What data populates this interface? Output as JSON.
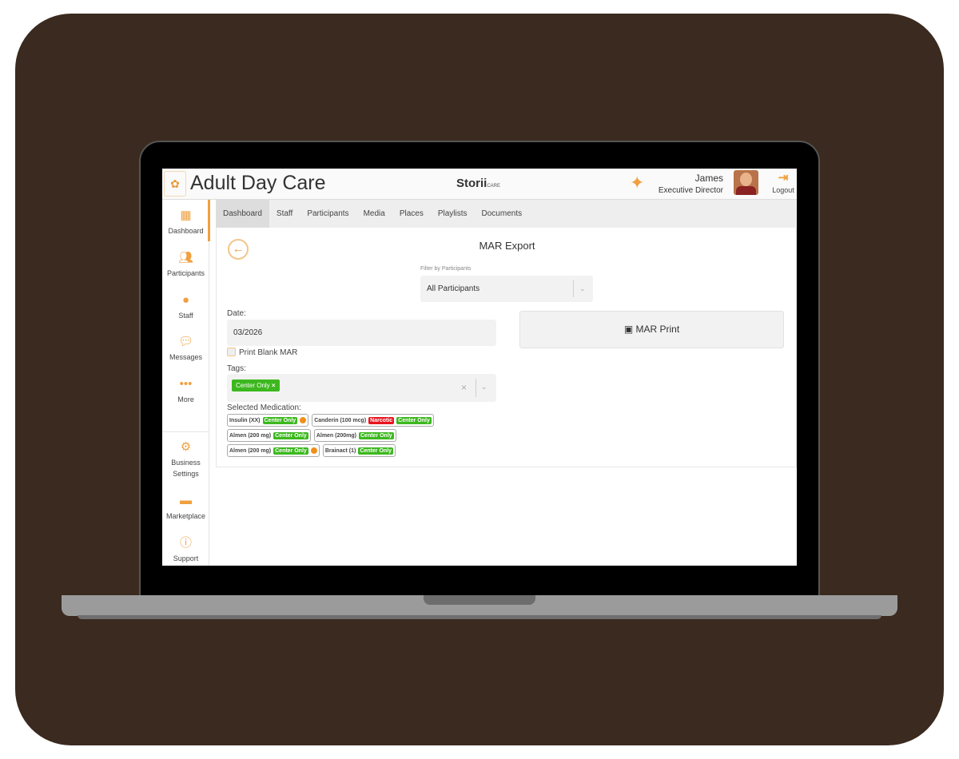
{
  "colors": {
    "accent": "#f0a040",
    "tag_green": "#3cb81e",
    "narcotic_red": "#e8141e",
    "frame": "#3a2a1f"
  },
  "header": {
    "title": "Adult Day Care",
    "brand": "Storii",
    "brand_sub": "CARE",
    "user_name": "James",
    "user_role": "Executive Director",
    "logout": "Logout"
  },
  "sidebar": {
    "items": [
      {
        "label": "Dashboard",
        "icon": "grid-icon"
      },
      {
        "label": "Participants",
        "icon": "users-icon"
      },
      {
        "label": "Staff",
        "icon": "doctor-icon"
      },
      {
        "label": "Messages",
        "icon": "chat-icon"
      },
      {
        "label": "More",
        "icon": "dots-icon"
      }
    ],
    "bottom": [
      {
        "label": "Business Settings",
        "icon": "gear-icon"
      },
      {
        "label": "Marketplace",
        "icon": "store-icon"
      },
      {
        "label": "Support",
        "icon": "help-icon"
      }
    ]
  },
  "tabs": [
    "Dashboard",
    "Staff",
    "Participants",
    "Media",
    "Places",
    "Playlists",
    "Documents"
  ],
  "main": {
    "title": "MAR Export",
    "filter_label": "Filter by Participants",
    "filter_value": "All Participants",
    "date_label": "Date:",
    "date_value": "03/2026",
    "blank_label": "Print Blank MAR",
    "print_label": "MAR Print",
    "tags_label": "Tags:",
    "tag": "Center Only",
    "selected_label": "Selected Medication:"
  },
  "medications": [
    [
      {
        "name": "Insulin (XX)",
        "badges": [
          "Center Only"
        ],
        "clock": true
      },
      {
        "name": "Canderin (100 mcg)",
        "badges": [
          "Narcotic",
          "Center Only"
        ],
        "clock": false
      }
    ],
    [
      {
        "name": "Almen (200 mg)",
        "badges": [
          "Center Only"
        ],
        "clock": false
      },
      {
        "name": "Almen (200mg)",
        "badges": [
          "Center Only"
        ],
        "clock": false
      }
    ],
    [
      {
        "name": "Almen (200 mg)",
        "badges": [
          "Center Only"
        ],
        "clock": true
      },
      {
        "name": "Brainact (1)",
        "badges": [
          "Center Only"
        ],
        "clock": false
      }
    ]
  ]
}
